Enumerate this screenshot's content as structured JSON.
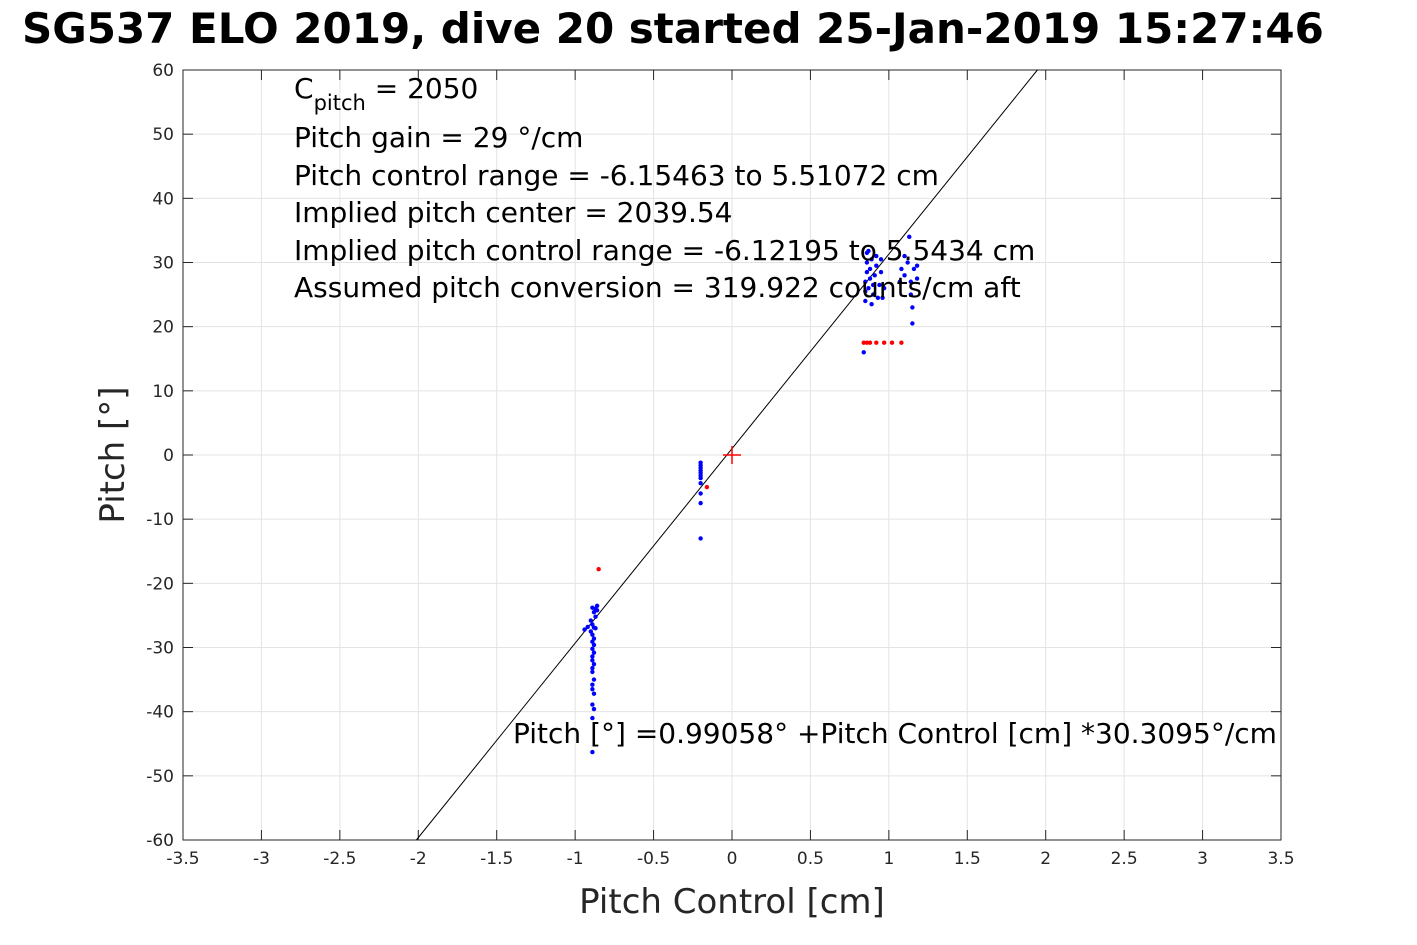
{
  "chart_data": {
    "type": "scatter",
    "title": "SG537 ELO 2019, dive 20 started 25-Jan-2019 15:27:46",
    "xlabel": "Pitch Control [cm]",
    "ylabel": "Pitch [°]",
    "xlim": [
      -3.5,
      3.5
    ],
    "ylim": [
      -60,
      60
    ],
    "xticks": [
      "-3.5",
      "-3",
      "-2.5",
      "-2",
      "-1.5",
      "-1",
      "-0.5",
      "0",
      "0.5",
      "1",
      "1.5",
      "2",
      "2.5",
      "3",
      "3.5"
    ],
    "yticks": [
      "-60",
      "-50",
      "-40",
      "-30",
      "-20",
      "-10",
      "0",
      "10",
      "20",
      "30",
      "40",
      "50",
      "60"
    ],
    "grid": true,
    "fit_line": {
      "intercept": 0.99058,
      "slope": 30.3095,
      "color": "#000000"
    },
    "center_marker": {
      "x": 0,
      "y": 0,
      "color": "#ff0000"
    },
    "annotations": {
      "cpitch_main": "C",
      "cpitch_sub": "pitch",
      "cpitch_value": " = 2050",
      "lines": [
        "Pitch gain = 29 °/cm",
        "Pitch control range = -6.15463 to 5.51072 cm",
        "Implied pitch center = 2039.54",
        "Implied pitch control range = -6.12195 to 5.5434 cm",
        "Assumed pitch conversion = 319.922 counts/cm aft"
      ],
      "fit_equation": "Pitch [°] =0.99058° +Pitch Control [cm] *30.3095°/cm"
    },
    "series": [
      {
        "color": "#0000ff",
        "points": [
          [
            -0.89,
            -23.8
          ],
          [
            -0.88,
            -24.5
          ],
          [
            -0.87,
            -25.2
          ],
          [
            -0.86,
            -23.5
          ],
          [
            -0.9,
            -25.8
          ],
          [
            -0.89,
            -26.4
          ],
          [
            -0.88,
            -26.9
          ],
          [
            -0.92,
            -26.8
          ],
          [
            -0.94,
            -27.2
          ],
          [
            -0.9,
            -27.5
          ],
          [
            -0.89,
            -28.0
          ],
          [
            -0.88,
            -28.6
          ],
          [
            -0.89,
            -29.1
          ],
          [
            -0.88,
            -29.6
          ],
          [
            -0.89,
            -30.2
          ],
          [
            -0.88,
            -30.8
          ],
          [
            -0.89,
            -31.4
          ],
          [
            -0.89,
            -32.0
          ],
          [
            -0.88,
            -32.6
          ],
          [
            -0.89,
            -33.2
          ],
          [
            -0.89,
            -33.8
          ],
          [
            -0.88,
            -35.0
          ],
          [
            -0.89,
            -35.8
          ],
          [
            -0.89,
            -36.5
          ],
          [
            -0.88,
            -37.2
          ],
          [
            -0.89,
            -38.9
          ],
          [
            -0.88,
            -39.6
          ],
          [
            -0.89,
            -41.0
          ],
          [
            -0.89,
            -46.3
          ],
          [
            -0.87,
            -24.0
          ],
          [
            -0.87,
            -27.0
          ],
          [
            -0.86,
            -24.2
          ],
          [
            -0.2,
            -1.2
          ],
          [
            -0.2,
            -1.6
          ],
          [
            -0.2,
            -2.0
          ],
          [
            -0.2,
            -2.4
          ],
          [
            -0.2,
            -2.8
          ],
          [
            -0.2,
            -3.2
          ],
          [
            -0.2,
            -3.6
          ],
          [
            -0.2,
            -4.4
          ],
          [
            -0.2,
            -6.0
          ],
          [
            -0.2,
            -7.5
          ],
          [
            -0.2,
            -13.0
          ],
          [
            0.84,
            16.0
          ],
          [
            0.85,
            24.0
          ],
          [
            0.85,
            25.5
          ],
          [
            0.85,
            27.0
          ],
          [
            0.86,
            28.5
          ],
          [
            0.86,
            30.0
          ],
          [
            0.86,
            31.5
          ],
          [
            0.87,
            26.0
          ],
          [
            0.88,
            27.5
          ],
          [
            0.88,
            29.0
          ],
          [
            0.89,
            30.5
          ],
          [
            0.89,
            23.5
          ],
          [
            0.9,
            25.0
          ],
          [
            0.9,
            26.5
          ],
          [
            0.91,
            28.0
          ],
          [
            0.92,
            29.5
          ],
          [
            0.92,
            31.0
          ],
          [
            0.93,
            24.5
          ],
          [
            0.94,
            26.5
          ],
          [
            0.95,
            28.5
          ],
          [
            0.95,
            30.5
          ],
          [
            0.96,
            24.5
          ],
          [
            0.97,
            26.0
          ],
          [
            1.07,
            27.0
          ],
          [
            1.08,
            29.0
          ],
          [
            1.1,
            31.0
          ],
          [
            1.1,
            28.0
          ],
          [
            1.13,
            34.0
          ],
          [
            1.14,
            27.0
          ],
          [
            1.14,
            25.0
          ],
          [
            1.15,
            23.0
          ],
          [
            1.15,
            20.5
          ],
          [
            1.16,
            29.0
          ],
          [
            1.18,
            27.5
          ],
          [
            1.18,
            29.5
          ],
          [
            1.12,
            30.0
          ],
          [
            0.87,
            31.8
          ]
        ]
      },
      {
        "color": "#ff0000",
        "points": [
          [
            -0.85,
            -17.8
          ],
          [
            -0.16,
            -5.0
          ],
          [
            0.84,
            17.5
          ],
          [
            0.86,
            17.5
          ],
          [
            0.88,
            17.5
          ],
          [
            0.92,
            17.5
          ],
          [
            0.97,
            17.5
          ],
          [
            1.02,
            17.5
          ],
          [
            1.08,
            17.5
          ]
        ]
      }
    ]
  }
}
